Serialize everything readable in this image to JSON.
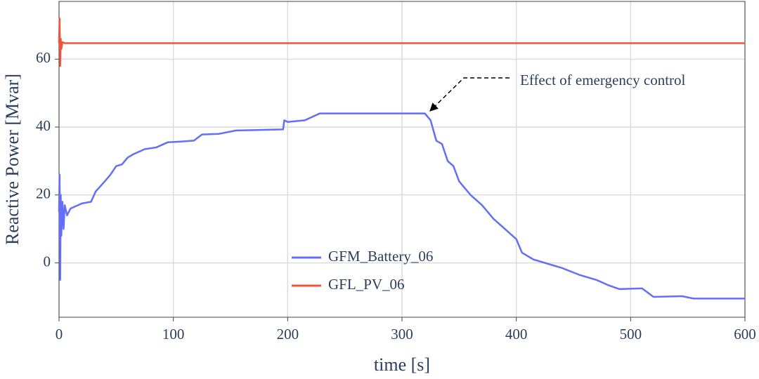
{
  "chart_data": {
    "type": "line",
    "x_label": "time [s]",
    "y_label": "Reactive Power [Mvar]",
    "xlim": [
      0,
      600
    ],
    "ylim": [
      -16,
      77
    ],
    "xticks": [
      0,
      100,
      200,
      300,
      400,
      500,
      600
    ],
    "yticks": [
      0,
      20,
      40,
      60
    ],
    "grid": true,
    "legend": "bottom-center",
    "annotation": "Effect of emergency control",
    "series": [
      {
        "name": "GFM_Battery_06",
        "color": "#636efa",
        "x": [
          0,
          0.5,
          1,
          1.5,
          2,
          3,
          4,
          5,
          7,
          10,
          20,
          28,
          32,
          40,
          45,
          50,
          55,
          60,
          65,
          75,
          85,
          95,
          105,
          118,
          125,
          140,
          155,
          170,
          196,
          197,
          200,
          215,
          228,
          260,
          300,
          315,
          320,
          325,
          330,
          335,
          340,
          345,
          350,
          360,
          370,
          380,
          390,
          400,
          405,
          415,
          430,
          440,
          455,
          470,
          480,
          490,
          510,
          520,
          545,
          555,
          600
        ],
        "values": [
          15,
          26,
          -5,
          20,
          8,
          18,
          10,
          17,
          14,
          16,
          17.5,
          18,
          21,
          24,
          26,
          28.5,
          29,
          31,
          32,
          33.5,
          34,
          35.5,
          35.7,
          36,
          37.8,
          38,
          39,
          39.1,
          39.3,
          42,
          41.5,
          42,
          44,
          44,
          44,
          44,
          44,
          42,
          36,
          35,
          30,
          28.5,
          24,
          20,
          17,
          13,
          10,
          7,
          3,
          1,
          -0.5,
          -1.5,
          -3.5,
          -5,
          -6.5,
          -7.7,
          -7.5,
          -10,
          -9.8,
          -10.5,
          -10.5
        ]
      },
      {
        "name": "GFL_PV_06",
        "color": "#ef553b",
        "x": [
          0,
          0.5,
          1,
          1.5,
          2,
          3,
          5,
          600
        ],
        "values": [
          64.7,
          72,
          58,
          66,
          63,
          65,
          64.7,
          64.7
        ]
      }
    ]
  }
}
